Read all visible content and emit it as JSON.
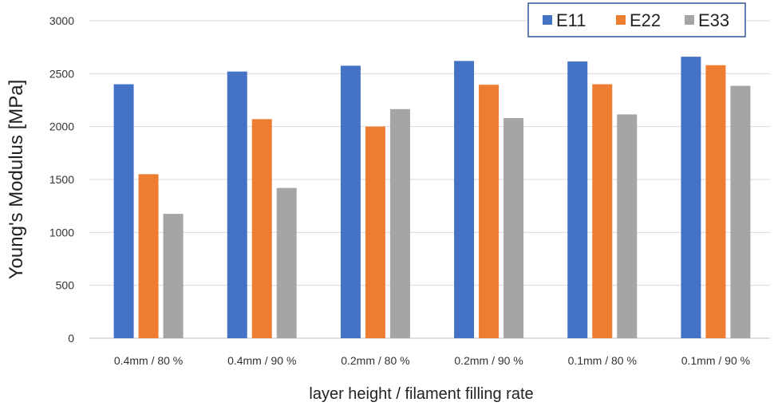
{
  "chart_data": {
    "type": "bar",
    "title": "",
    "xlabel": "layer height / filament filling rate",
    "ylabel": "Young's Modulus [MPa]",
    "categories": [
      "0.4mm / 80 %",
      "0.4mm / 90 %",
      "0.2mm / 80 %",
      "0.2mm / 90 %",
      "0.1mm / 80 %",
      "0.1mm / 90 %"
    ],
    "series": [
      {
        "name": "E11",
        "color": "#4472C4",
        "values": [
          2400,
          2520,
          2575,
          2620,
          2615,
          2660
        ]
      },
      {
        "name": "E22",
        "color": "#ED7D31",
        "values": [
          1550,
          2070,
          2000,
          2395,
          2400,
          2580
        ]
      },
      {
        "name": "E33",
        "color": "#A5A5A5",
        "values": [
          1175,
          1420,
          2165,
          2080,
          2115,
          2385
        ]
      }
    ],
    "ylim": [
      0,
      3000
    ],
    "yticks": [
      0,
      500,
      1000,
      1500,
      2000,
      2500,
      3000
    ],
    "grid": true,
    "legend_position": "top-right"
  }
}
